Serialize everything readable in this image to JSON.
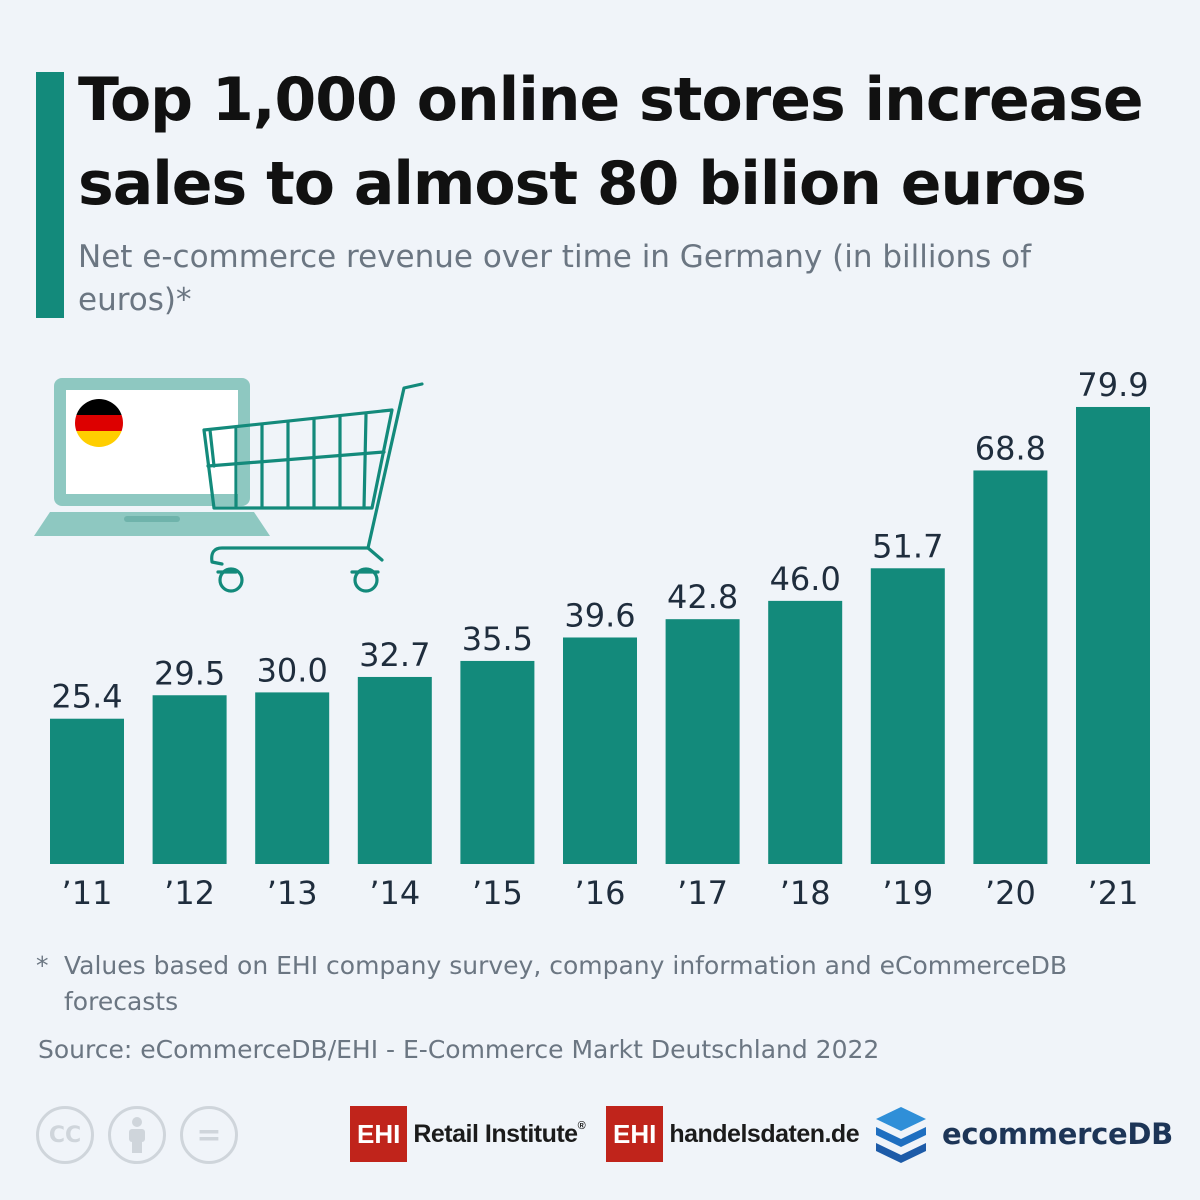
{
  "header": {
    "title": "Top 1,000 online stores increase sales to almost 80 bilion euros",
    "subtitle": "Net e-commerce revenue over time in Germany (in billions of euros)*"
  },
  "chart_data": {
    "type": "bar",
    "categories": [
      "’11",
      "’12",
      "’13",
      "’14",
      "’15",
      "’16",
      "’17",
      "’18",
      "’19",
      "’20",
      "’21"
    ],
    "values": [
      25.4,
      29.5,
      30.0,
      32.7,
      35.5,
      39.6,
      42.8,
      46.0,
      51.7,
      68.8,
      79.9
    ],
    "value_labels": [
      "25.4",
      "29.5",
      "30.0",
      "32.7",
      "35.5",
      "39.6",
      "42.8",
      "46.0",
      "51.7",
      "68.8",
      "79.9"
    ],
    "title": "Top 1,000 online stores increase sales to almost 80 bilion euros",
    "subtitle": "Net e-commerce revenue over time in Germany (in billions of euros)*",
    "xlabel": "",
    "ylabel": "",
    "ylim": [
      0,
      80
    ],
    "grid": false,
    "legend": "none",
    "colors": {
      "bar": "#138a7b",
      "label": "#1f2d3d",
      "background": "#f0f4f9"
    }
  },
  "illustration": {
    "laptop_icon": "laptop-icon",
    "flag_icon": "germany-flag-icon",
    "cart_icon": "shopping-cart-icon",
    "colors": {
      "laptop": "#8ec8c1",
      "cart": "#138a7b",
      "flag": [
        "#000000",
        "#dd0000",
        "#ffce00"
      ]
    }
  },
  "footer": {
    "footnote_star": "*",
    "footnote": "Values based on EHI company survey, company information and eCommerceDB forecasts",
    "source": "Source:  eCommerceDB/EHI - E-Commerce Markt Deutschland 2022",
    "license_icons": [
      {
        "icon": "cc-icon",
        "label": "CC"
      },
      {
        "icon": "attribution-icon",
        "label": ""
      },
      {
        "icon": "no-derivatives-icon",
        "label": "="
      }
    ],
    "logos": {
      "ehi_retail": {
        "box": "EHI",
        "text": "Retail Institute",
        "mark": "®"
      },
      "handelsdaten": {
        "box": "EHI",
        "text": "handelsdaten.de"
      },
      "ecommercedb": {
        "text": "ecommerceDB"
      }
    }
  }
}
